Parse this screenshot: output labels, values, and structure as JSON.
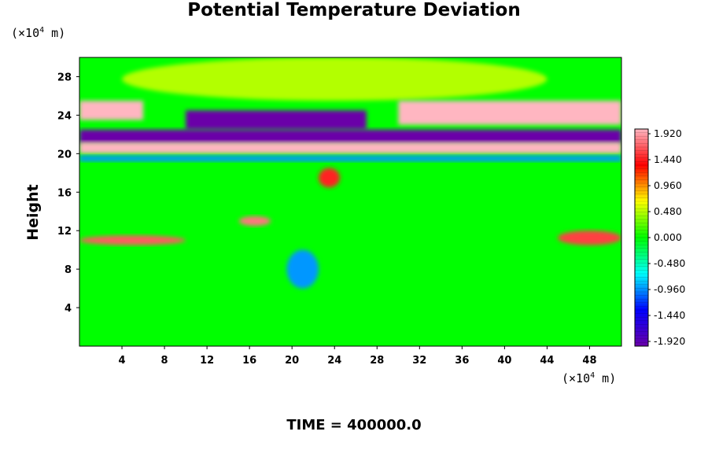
{
  "chart_data": {
    "type": "heatmap",
    "title": "Potential Temperature Deviation",
    "ylabel": "Height",
    "y_unit_prefix": "(×10",
    "y_unit_exp": "4",
    "y_unit_suffix": " m)",
    "x_unit_prefix": "(×10",
    "x_unit_exp": "4",
    "x_unit_suffix": " m)",
    "x_ticks": [
      "4",
      "8",
      "12",
      "16",
      "20",
      "24",
      "28",
      "32",
      "36",
      "40",
      "44",
      "48"
    ],
    "y_ticks": [
      "4",
      "8",
      "12",
      "16",
      "20",
      "24",
      "28"
    ],
    "xlim": [
      0,
      51
    ],
    "ylim": [
      0,
      30
    ],
    "colorbar": {
      "range": [
        -1.92,
        1.92
      ],
      "tick_labels": [
        "1.920",
        "1.440",
        "0.960",
        "0.480",
        "0.000",
        "-0.480",
        "-0.960",
        "-1.440",
        "-1.920"
      ],
      "colors": [
        "#6a00a8",
        "#0000ff",
        "#00ffff",
        "#00ff00",
        "#ffff00",
        "#ff0000",
        "#ffb6c1"
      ]
    },
    "field_regions": [
      {
        "feature": "background",
        "x": [
          0,
          51
        ],
        "y": [
          0,
          30
        ],
        "value": 0.0
      },
      {
        "feature": "upper-warm-dome",
        "x": [
          4,
          44
        ],
        "y": [
          25.5,
          30
        ],
        "value": 0.45
      },
      {
        "feature": "cold-band-center",
        "x": [
          10,
          27
        ],
        "y": [
          22.5,
          24.5
        ],
        "value": -1.92
      },
      {
        "feature": "warm-band-left",
        "x": [
          0,
          6
        ],
        "y": [
          23.5,
          25.5
        ],
        "value": 1.92
      },
      {
        "feature": "warm-band-right",
        "x": [
          30,
          51
        ],
        "y": [
          23,
          25.5
        ],
        "value": 1.92
      },
      {
        "feature": "cold-layer",
        "x": [
          0,
          51
        ],
        "y": [
          21,
          22.5
        ],
        "value": -1.92
      },
      {
        "feature": "warm-layer",
        "x": [
          0,
          51
        ],
        "y": [
          20,
          21.2
        ],
        "value": 1.92
      },
      {
        "feature": "cold-streak",
        "x": [
          0,
          51
        ],
        "y": [
          19.2,
          19.8
        ],
        "value": -0.9
      },
      {
        "feature": "warm-blob",
        "x": [
          15,
          18
        ],
        "y": [
          12.5,
          13.5
        ],
        "value": 1.7
      },
      {
        "feature": "warm-blob",
        "x": [
          22.5,
          24.5
        ],
        "y": [
          16.5,
          18.5
        ],
        "value": 1.4
      },
      {
        "feature": "warm-patches",
        "x": [
          0,
          10
        ],
        "y": [
          10.5,
          11.5
        ],
        "value": 1.6
      },
      {
        "feature": "warm-patches",
        "x": [
          45,
          51
        ],
        "y": [
          10.5,
          12
        ],
        "value": 1.5
      },
      {
        "feature": "cold-plume",
        "x": [
          19.5,
          22.5
        ],
        "y": [
          6,
          10
        ],
        "value": -0.9
      }
    ]
  },
  "footer": {
    "time_label": "TIME = 400000.0"
  }
}
